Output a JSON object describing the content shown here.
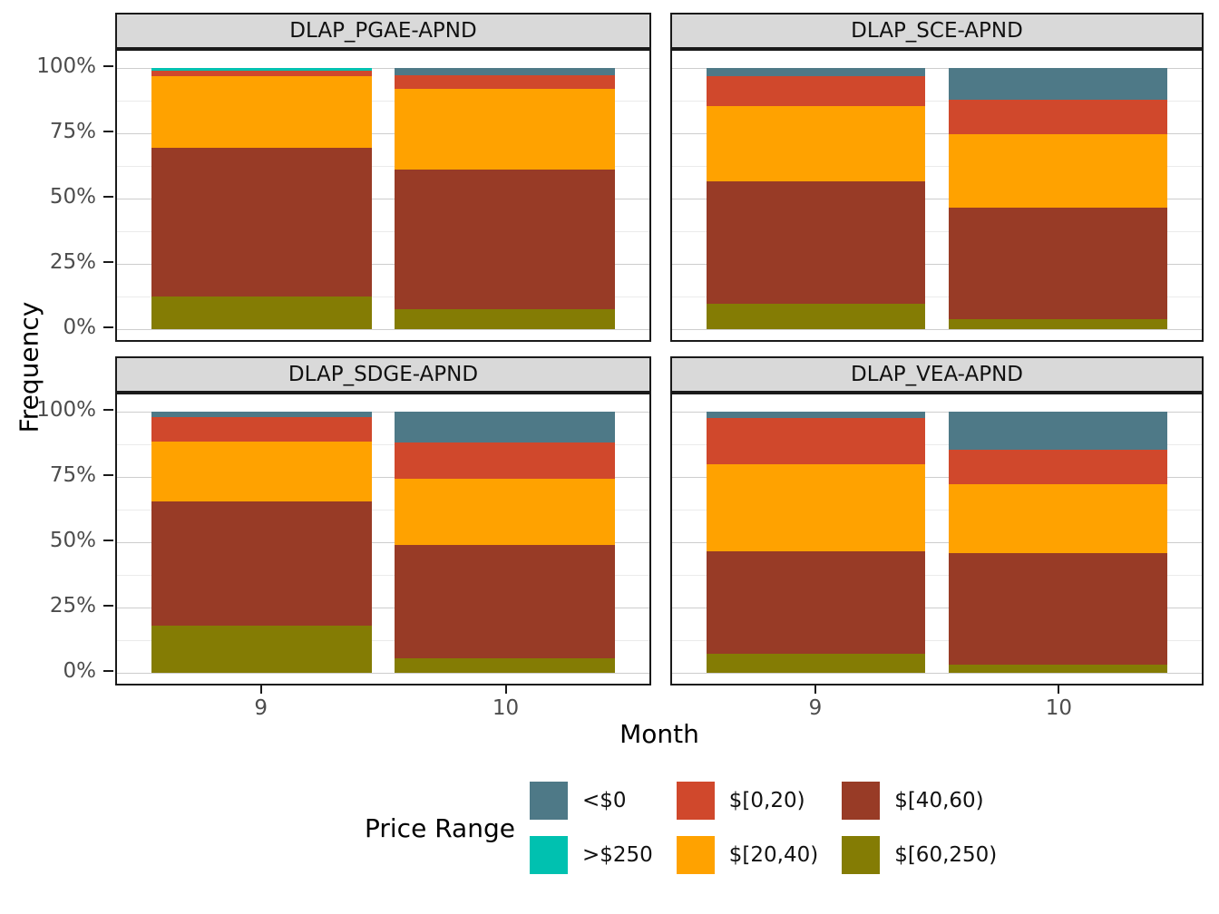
{
  "figure": {
    "y_axis_title": "Frequency",
    "x_axis_title": "Month",
    "y_tick_labels": [
      "100%",
      "75%",
      "50%",
      "25%",
      "0%"
    ],
    "x_tick_labels": [
      "9",
      "10"
    ]
  },
  "legend": {
    "title": "Price Range",
    "entries": [
      {
        "label": "<$0",
        "color": "#4e7987"
      },
      {
        "label": ">$250",
        "color": "#00c1b0"
      },
      {
        "label": "$[0,20)",
        "color": "#d0482c"
      },
      {
        "label": "$[20,40)",
        "color": "#ffa200"
      },
      {
        "label": "$[40,60)",
        "color": "#983b26"
      },
      {
        "label": "$[60,250)",
        "color": "#847c04"
      }
    ]
  },
  "chart_data": {
    "type": "bar",
    "stacked": true,
    "unit": "percent_frequency",
    "xlabel": "Month",
    "ylabel": "Frequency",
    "ylim": [
      0,
      100
    ],
    "x": [
      "9",
      "10"
    ],
    "legend_position": "bottom",
    "grid": "major 25% + minor 12.5% horizontal lines",
    "stack_order_bottom_to_top": [
      "$[60,250)",
      "$[40,60)",
      "$[20,40)",
      "$[0,20)",
      ">$250",
      "<$0"
    ],
    "colors_bottom_to_top": [
      "#847c04",
      "#983b26",
      "#ffa200",
      "#d0482c",
      "#00c1b0",
      "#4e7987"
    ],
    "facets": [
      {
        "title": "DLAP_PGAE-APND",
        "bars": [
          {
            "month": "9",
            "values": [
              12.5,
              56.9,
              27.6,
              2.0,
              1.0,
              0.0
            ]
          },
          {
            "month": "10",
            "values": [
              7.6,
              53.5,
              30.8,
              5.2,
              0.0,
              2.9
            ]
          }
        ]
      },
      {
        "title": "DLAP_SCE-APND",
        "bars": [
          {
            "month": "9",
            "values": [
              9.7,
              46.9,
              28.9,
              11.4,
              0.0,
              3.1
            ]
          },
          {
            "month": "10",
            "values": [
              3.8,
              42.8,
              27.9,
              13.3,
              0.0,
              12.2
            ]
          }
        ]
      },
      {
        "title": "DLAP_SDGE-APND",
        "bars": [
          {
            "month": "9",
            "values": [
              18.1,
              47.5,
              23.0,
              9.3,
              0.0,
              2.1
            ]
          },
          {
            "month": "10",
            "values": [
              5.6,
              43.4,
              25.2,
              14.1,
              0.0,
              11.7
            ]
          }
        ]
      },
      {
        "title": "DLAP_VEA-APND",
        "bars": [
          {
            "month": "9",
            "values": [
              7.3,
              39.2,
              33.4,
              17.8,
              0.0,
              2.3
            ]
          },
          {
            "month": "10",
            "values": [
              3.1,
              42.7,
              26.4,
              13.2,
              0.0,
              14.6
            ]
          }
        ]
      }
    ]
  }
}
